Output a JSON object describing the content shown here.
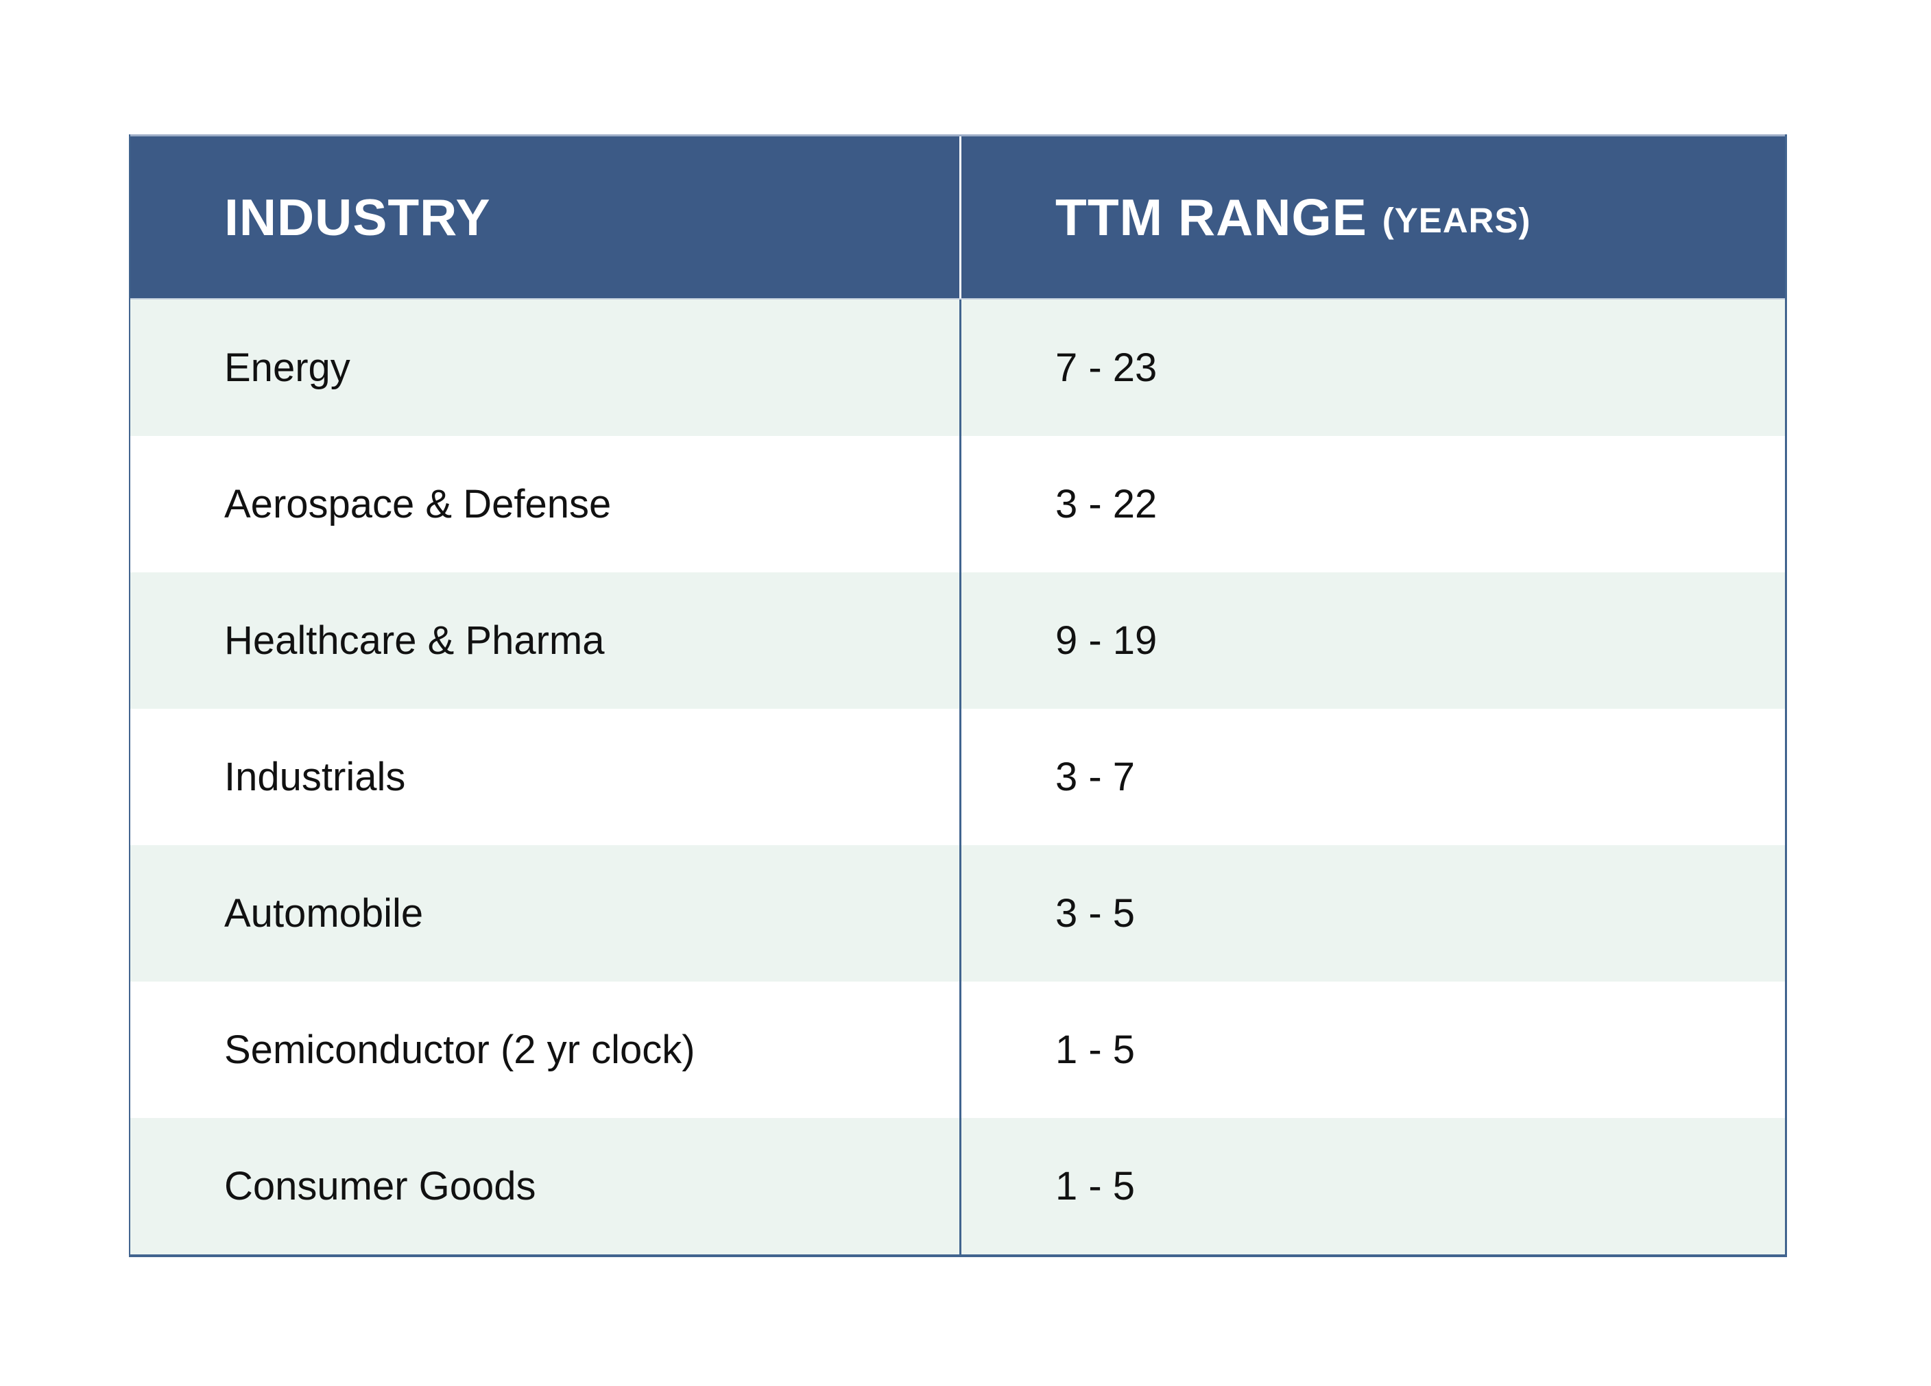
{
  "table": {
    "columns": [
      {
        "label": "INDUSTRY"
      },
      {
        "label": "TTM RANGE",
        "sublabel": "(YEARS)"
      }
    ],
    "rows": [
      {
        "industry": "Energy",
        "ttm": "7 - 23"
      },
      {
        "industry": "Aerospace & Defense",
        "ttm": "3 - 22"
      },
      {
        "industry": "Healthcare & Pharma",
        "ttm": "9 - 19"
      },
      {
        "industry": "Industrials",
        "ttm": "3 - 7"
      },
      {
        "industry": "Automobile",
        "ttm": "3 - 5"
      },
      {
        "industry": "Semiconductor (2 yr clock)",
        "ttm": "1 - 5"
      },
      {
        "industry": "Consumer Goods",
        "ttm": "1 - 5"
      }
    ],
    "colors": {
      "header_bg": "#3C5A86",
      "header_text": "#FFFFFF",
      "row_bg": "#FFFFFF",
      "row_alt_bg": "#ECF4F0",
      "border": "#41648F",
      "body_text": "#111111"
    }
  },
  "chart_data": {
    "type": "table",
    "title": "",
    "columns": [
      "INDUSTRY",
      "TTM RANGE (YEARS)"
    ],
    "rows": [
      [
        "Energy",
        "7 - 23"
      ],
      [
        "Aerospace & Defense",
        "3 - 22"
      ],
      [
        "Healthcare & Pharma",
        "9 - 19"
      ],
      [
        "Industrials",
        "3 - 7"
      ],
      [
        "Automobile",
        "3 - 5"
      ],
      [
        "Semiconductor (2 yr clock)",
        "1 - 5"
      ],
      [
        "Consumer Goods",
        "1 - 5"
      ]
    ],
    "ranges_numeric": [
      {
        "industry": "Energy",
        "min_years": 7,
        "max_years": 23
      },
      {
        "industry": "Aerospace & Defense",
        "min_years": 3,
        "max_years": 22
      },
      {
        "industry": "Healthcare & Pharma",
        "min_years": 9,
        "max_years": 19
      },
      {
        "industry": "Industrials",
        "min_years": 3,
        "max_years": 7
      },
      {
        "industry": "Automobile",
        "min_years": 3,
        "max_years": 5
      },
      {
        "industry": "Semiconductor (2 yr clock)",
        "min_years": 1,
        "max_years": 5
      },
      {
        "industry": "Consumer Goods",
        "min_years": 1,
        "max_years": 5
      }
    ]
  }
}
